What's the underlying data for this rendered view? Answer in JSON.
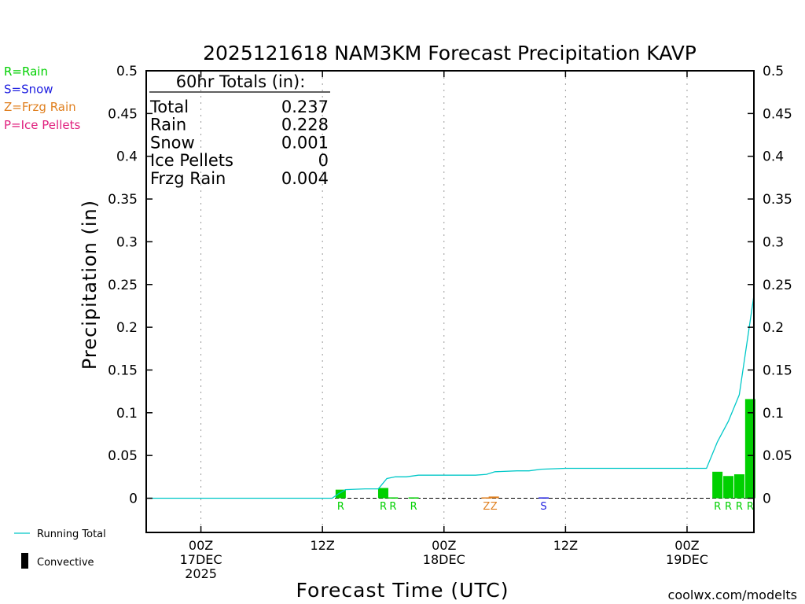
{
  "chart_data": {
    "type": "bar",
    "title": "2025121618 NAM3KM Forecast Precipitation KAVP",
    "xlabel": "Forecast Time (UTC)",
    "ylabel": "Precipitation (in)",
    "ylim": [
      -0.04,
      0.5
    ],
    "yticks": [
      0,
      0.05,
      0.1,
      0.15,
      0.2,
      0.25,
      0.3,
      0.35,
      0.4,
      0.45,
      0.5
    ],
    "ytick_labels": [
      "0",
      "0.05",
      "0.1",
      "0.15",
      "0.2",
      "0.25",
      "0.3",
      "0.35",
      "0.4",
      "0.45",
      "0.5"
    ],
    "x_range_hours": [
      -4.5,
      45.5
    ],
    "x_ticks": [
      {
        "hour": 0,
        "line1": "00Z",
        "line2": "17DEC",
        "line3": "2025"
      },
      {
        "hour": 10,
        "line1": "12Z",
        "line2": "",
        "line3": ""
      },
      {
        "hour": 20,
        "line1": "00Z",
        "line2": "18DEC",
        "line3": ""
      },
      {
        "hour": 30,
        "line1": "12Z",
        "line2": "",
        "line3": ""
      },
      {
        "hour": 40,
        "line1": "00Z",
        "line2": "19DEC",
        "line3": ""
      }
    ],
    "series": [
      {
        "name": "Rain",
        "color": "#00d000",
        "bars": [
          {
            "hour": 11.5,
            "value": 0.01,
            "marker": "R"
          },
          {
            "hour": 15,
            "value": 0.012,
            "marker": "R"
          },
          {
            "hour": 15.8,
            "value": 0.001,
            "marker": "R"
          },
          {
            "hour": 17.5,
            "value": 0.001,
            "marker": "R"
          },
          {
            "hour": 42.5,
            "value": 0.031,
            "marker": "R"
          },
          {
            "hour": 43.4,
            "value": 0.026,
            "marker": "R"
          },
          {
            "hour": 44.3,
            "value": 0.028,
            "marker": "R"
          },
          {
            "hour": 45.2,
            "value": 0.116,
            "marker": "R"
          }
        ]
      },
      {
        "name": "Frzg Rain",
        "color": "#e08020",
        "bars": [
          {
            "hour": 23.5,
            "value": 0.001,
            "marker": "Z"
          },
          {
            "hour": 24.1,
            "value": 0.002,
            "marker": "Z"
          }
        ]
      },
      {
        "name": "Snow",
        "color": "#2020e0",
        "bars": [
          {
            "hour": 28.2,
            "value": 0.001,
            "marker": "S"
          }
        ]
      }
    ],
    "running_total": {
      "name": "Running Total",
      "color": "#00c8c8",
      "points": [
        [
          -4.3,
          0
        ],
        [
          10.8,
          0
        ],
        [
          11.3,
          0.005
        ],
        [
          11.9,
          0.01
        ],
        [
          13.5,
          0.011
        ],
        [
          14.6,
          0.011
        ],
        [
          15.3,
          0.023
        ],
        [
          16,
          0.025
        ],
        [
          16.9,
          0.025
        ],
        [
          17.9,
          0.027
        ],
        [
          22.6,
          0.027
        ],
        [
          23.5,
          0.028
        ],
        [
          24.2,
          0.031
        ],
        [
          26,
          0.032
        ],
        [
          27,
          0.032
        ],
        [
          28,
          0.034
        ],
        [
          30,
          0.035
        ],
        [
          40,
          0.035
        ],
        [
          41.6,
          0.035
        ],
        [
          42.5,
          0.066
        ],
        [
          43.4,
          0.09
        ],
        [
          44.3,
          0.121
        ],
        [
          45.5,
          0.237
        ]
      ]
    },
    "totals_box": {
      "header": "60hr Totals (in):",
      "rows": [
        {
          "label": "Total",
          "value": "0.237"
        },
        {
          "label": "Rain",
          "value": "0.228"
        },
        {
          "label": "Snow",
          "value": "0.001"
        },
        {
          "label": "Ice Pellets",
          "value": "0"
        },
        {
          "label": "Frzg Rain",
          "value": "0.004"
        }
      ]
    },
    "legend_types": [
      {
        "text": "R=Rain",
        "color": "#00d000"
      },
      {
        "text": "S=Snow",
        "color": "#2020e0"
      },
      {
        "text": "Z=Frzg Rain",
        "color": "#e08020"
      },
      {
        "text": "P=Ice Pellets",
        "color": "#e0207e"
      }
    ],
    "legend_lines": [
      {
        "text": "Running Total",
        "color": "#00c8c8",
        "kind": "line"
      },
      {
        "text": "Convective",
        "color": "#000000",
        "kind": "bar"
      }
    ],
    "credit": "coolwx.com/modelts",
    "credit_color": "#cc2020"
  }
}
